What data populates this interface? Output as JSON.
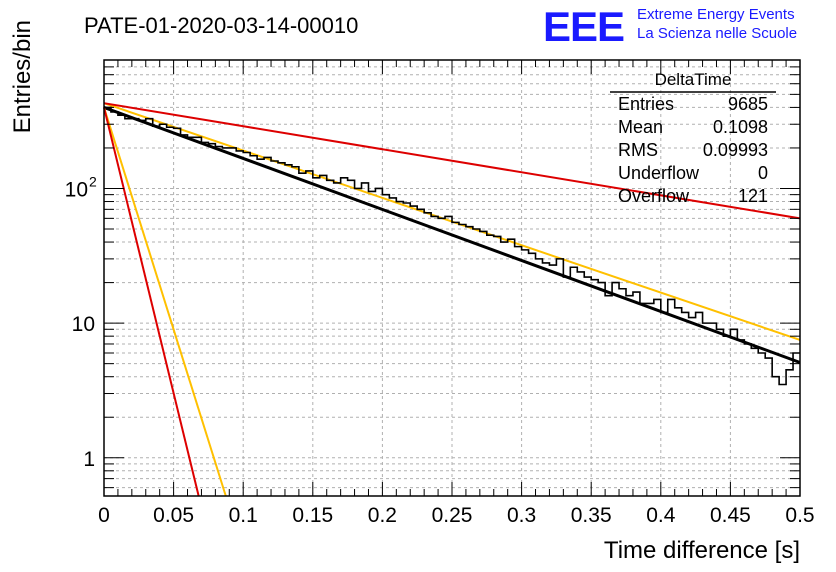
{
  "header": {
    "run_title": "PATE-01-2020-03-14-00010",
    "logo_text": "EEE",
    "logo_line1": "Extreme Energy Events",
    "logo_line2": "La Scienza nelle Scuole",
    "logo_color": "#1a1aff"
  },
  "stats_box": {
    "title": "DeltaTime",
    "rows": [
      {
        "label": "Entries",
        "value": "9685"
      },
      {
        "label": "Mean",
        "value": "0.1098"
      },
      {
        "label": "RMS",
        "value": "0.09993"
      },
      {
        "label": "Underflow",
        "value": "0"
      },
      {
        "label": "Overflow",
        "value": "121"
      }
    ]
  },
  "chart_data": {
    "type": "line",
    "title": "PATE-01-2020-03-14-00010",
    "xlabel": "Time difference [s]",
    "ylabel": "Entries/bin",
    "xlim": [
      0,
      0.5
    ],
    "ylim": [
      0.52,
      900
    ],
    "y_scale": "log",
    "grid": true,
    "x_ticks": [
      "0",
      "0.05",
      "0.1",
      "0.15",
      "0.2",
      "0.25",
      "0.3",
      "0.35",
      "0.4",
      "0.45",
      "0.5"
    ],
    "y_ticks": [
      {
        "value": 1,
        "label": "1"
      },
      {
        "value": 10,
        "label": "10"
      },
      {
        "value": 100,
        "label": "10",
        "exponent": "2"
      }
    ],
    "histogram": {
      "name": "DeltaTime",
      "bin_width": 0.005,
      "color": "#000000",
      "counts": [
        400,
        370,
        350,
        330,
        330,
        320,
        330,
        290,
        300,
        285,
        280,
        250,
        240,
        240,
        220,
        215,
        205,
        200,
        200,
        190,
        185,
        175,
        165,
        170,
        160,
        155,
        150,
        145,
        130,
        135,
        120,
        125,
        115,
        110,
        120,
        115,
        100,
        110,
        95,
        100,
        90,
        85,
        80,
        78,
        74,
        70,
        66,
        62,
        60,
        62,
        56,
        54,
        52,
        50,
        48,
        45,
        44,
        40,
        42,
        37,
        35,
        33,
        30,
        28,
        27,
        30,
        22,
        26,
        24,
        22,
        21,
        20,
        16,
        20,
        18,
        16,
        17,
        14,
        14,
        15,
        12,
        15,
        13,
        12,
        11,
        12,
        10,
        10,
        9,
        8,
        9,
        7.5,
        7,
        6.5,
        6,
        5.5,
        4,
        3.5,
        4.5,
        6
      ]
    },
    "fits": [
      {
        "color": "#000000",
        "x": [
          0,
          0.5
        ],
        "y": [
          400,
          5.1
        ]
      },
      {
        "color": "#ffc000",
        "x": [
          0,
          0.5
        ],
        "y": [
          430,
          7.5
        ]
      },
      {
        "color": "#dd0000",
        "x": [
          0,
          0.5
        ],
        "y": [
          430,
          60
        ]
      },
      {
        "color": "#ffc000",
        "x": [
          0,
          0.0875
        ],
        "y": [
          400,
          0.52
        ]
      },
      {
        "color": "#dd0000",
        "x": [
          0,
          0.068
        ],
        "y": [
          400,
          0.52
        ]
      }
    ]
  }
}
